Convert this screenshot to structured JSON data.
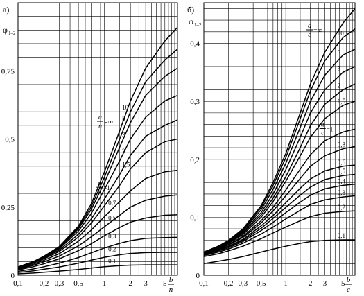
{
  "chart_data": [
    {
      "type": "line",
      "panel_label": "а)",
      "ylabel": "φ",
      "ylabel_sub": "1–2",
      "x_scale": "log",
      "xlim": [
        0.1,
        7
      ],
      "ylim": [
        0,
        1
      ],
      "x_ticks": [
        0.1,
        0.2,
        0.3,
        0.5,
        1,
        2,
        3,
        5
      ],
      "x_tick_labels": [
        "0,1",
        "0,2",
        "0,3",
        "0,5",
        "1",
        "2",
        "3",
        "5"
      ],
      "y_ticks": [
        0,
        0.25,
        0.5,
        0.75
      ],
      "y_tick_labels": [
        "0",
        "0,25",
        "0,5",
        "0,75"
      ],
      "xlabel": {
        "num": "b",
        "den": "n"
      },
      "param_label": {
        "num": "a",
        "den": "n",
        "rest": "=∞"
      },
      "param_label_eq1": {
        "num": "a",
        "den": "n",
        "rest": "=1"
      },
      "x": [
        0.1,
        0.15,
        0.2,
        0.3,
        0.5,
        0.7,
        1,
        1.5,
        2,
        3,
        5,
        7
      ],
      "series": [
        {
          "name": "∞",
          "values": [
            0.03,
            0.05,
            0.07,
            0.105,
            0.18,
            0.26,
            0.38,
            0.53,
            0.64,
            0.76,
            0.86,
            0.91
          ]
        },
        {
          "name": "10",
          "values": [
            0.03,
            0.05,
            0.069,
            0.103,
            0.175,
            0.25,
            0.36,
            0.5,
            0.6,
            0.71,
            0.79,
            0.83
          ]
        },
        {
          "name": "5",
          "values": [
            0.029,
            0.049,
            0.068,
            0.1,
            0.17,
            0.24,
            0.34,
            0.47,
            0.56,
            0.66,
            0.73,
            0.76
          ]
        },
        {
          "name": "3",
          "values": [
            0.028,
            0.048,
            0.066,
            0.097,
            0.162,
            0.225,
            0.315,
            0.42,
            0.5,
            0.58,
            0.64,
            0.66
          ]
        },
        {
          "name": "2",
          "values": [
            0.027,
            0.046,
            0.063,
            0.092,
            0.15,
            0.205,
            0.28,
            0.37,
            0.44,
            0.51,
            0.55,
            0.57
          ]
        },
        {
          "name": "1,5",
          "values": [
            0.026,
            0.044,
            0.06,
            0.087,
            0.14,
            0.19,
            0.255,
            0.33,
            0.39,
            0.45,
            0.49,
            0.5
          ]
        },
        {
          "name": "1",
          "values": [
            0.024,
            0.04,
            0.055,
            0.079,
            0.125,
            0.165,
            0.215,
            0.27,
            0.31,
            0.355,
            0.38,
            0.385
          ]
        },
        {
          "name": "0,7",
          "values": [
            0.022,
            0.036,
            0.049,
            0.07,
            0.108,
            0.14,
            0.178,
            0.22,
            0.25,
            0.275,
            0.29,
            0.295
          ]
        },
        {
          "name": "0,5",
          "values": [
            0.019,
            0.031,
            0.042,
            0.06,
            0.09,
            0.115,
            0.145,
            0.175,
            0.195,
            0.21,
            0.22,
            0.222
          ]
        },
        {
          "name": "0,3",
          "values": [
            0.014,
            0.023,
            0.031,
            0.044,
            0.065,
            0.082,
            0.1,
            0.117,
            0.127,
            0.135,
            0.138,
            0.139
          ]
        },
        {
          "name": "0,2",
          "values": [
            0.01,
            0.016,
            0.022,
            0.03,
            0.044,
            0.055,
            0.066,
            0.075,
            0.08,
            0.083,
            0.084,
            0.084
          ]
        },
        {
          "name": "0,1",
          "values": [
            0.005,
            0.008,
            0.011,
            0.015,
            0.021,
            0.026,
            0.031,
            0.035,
            0.037,
            0.038,
            0.038,
            0.038
          ]
        }
      ]
    },
    {
      "type": "line",
      "panel_label": "б)",
      "ylabel": "φ",
      "ylabel_sub": "1–2",
      "x_scale": "log",
      "xlim": [
        0.1,
        7
      ],
      "ylim": [
        0,
        0.47
      ],
      "x_ticks": [
        0.1,
        0.2,
        0.3,
        0.5,
        1,
        2,
        3,
        5
      ],
      "x_tick_labels": [
        "0,1",
        "0,2",
        "0,3",
        "0,5",
        "1",
        "2",
        "3",
        "5"
      ],
      "y_ticks": [
        0,
        0.1,
        0.2,
        0.3,
        0.4
      ],
      "y_tick_labels": [
        "0",
        "0,1",
        "0,2",
        "0,3",
        "0,4"
      ],
      "xlabel": {
        "num": "b",
        "den": "c"
      },
      "param_label": {
        "num": "a",
        "den": "c",
        "rest": "=∞"
      },
      "param_label_eq1": {
        "num": "a",
        "den": "c",
        "rest": "=1"
      },
      "x": [
        0.1,
        0.15,
        0.2,
        0.3,
        0.5,
        0.7,
        1,
        1.5,
        2,
        3,
        5,
        7
      ],
      "series": [
        {
          "name": "∞",
          "values": [
            0.04,
            0.05,
            0.06,
            0.08,
            0.12,
            0.16,
            0.21,
            0.28,
            0.33,
            0.385,
            0.435,
            0.46
          ]
        },
        {
          "name": "10",
          "values": [
            0.04,
            0.05,
            0.059,
            0.078,
            0.117,
            0.155,
            0.203,
            0.27,
            0.318,
            0.37,
            0.41,
            0.425
          ]
        },
        {
          "name": "5",
          "values": [
            0.039,
            0.049,
            0.058,
            0.076,
            0.113,
            0.148,
            0.193,
            0.255,
            0.3,
            0.345,
            0.38,
            0.39
          ]
        },
        {
          "name": "3",
          "values": [
            0.039,
            0.048,
            0.057,
            0.074,
            0.108,
            0.14,
            0.182,
            0.238,
            0.28,
            0.32,
            0.35,
            0.36
          ]
        },
        {
          "name": "2",
          "values": [
            0.038,
            0.047,
            0.056,
            0.072,
            0.104,
            0.133,
            0.17,
            0.22,
            0.258,
            0.295,
            0.32,
            0.33
          ]
        },
        {
          "name": "1,5",
          "values": [
            0.038,
            0.047,
            0.055,
            0.07,
            0.1,
            0.127,
            0.162,
            0.206,
            0.238,
            0.27,
            0.293,
            0.3
          ]
        },
        {
          "name": "1",
          "values": [
            0.037,
            0.046,
            0.053,
            0.067,
            0.094,
            0.117,
            0.147,
            0.183,
            0.208,
            0.232,
            0.247,
            0.252
          ]
        },
        {
          "name": "0,8",
          "values": [
            0.037,
            0.045,
            0.052,
            0.065,
            0.09,
            0.111,
            0.137,
            0.167,
            0.188,
            0.206,
            0.218,
            0.222
          ]
        },
        {
          "name": "0,6",
          "values": [
            0.036,
            0.044,
            0.05,
            0.062,
            0.085,
            0.103,
            0.125,
            0.15,
            0.166,
            0.18,
            0.188,
            0.19
          ]
        },
        {
          "name": "0,5",
          "values": [
            0.035,
            0.043,
            0.049,
            0.06,
            0.081,
            0.098,
            0.117,
            0.138,
            0.152,
            0.165,
            0.172,
            0.174
          ]
        },
        {
          "name": "0,4",
          "values": [
            0.035,
            0.042,
            0.047,
            0.058,
            0.077,
            0.091,
            0.108,
            0.126,
            0.138,
            0.149,
            0.155,
            0.157
          ]
        },
        {
          "name": "0,3",
          "values": [
            0.034,
            0.04,
            0.045,
            0.055,
            0.071,
            0.083,
            0.097,
            0.112,
            0.122,
            0.13,
            0.135,
            0.137
          ]
        },
        {
          "name": "0,2",
          "values": [
            0.032,
            0.037,
            0.042,
            0.05,
            0.063,
            0.073,
            0.083,
            0.094,
            0.101,
            0.107,
            0.11,
            0.111
          ]
        },
        {
          "name": "0,1",
          "values": [
            0.02,
            0.024,
            0.027,
            0.032,
            0.04,
            0.045,
            0.05,
            0.055,
            0.058,
            0.06,
            0.061,
            0.061
          ]
        }
      ]
    }
  ]
}
